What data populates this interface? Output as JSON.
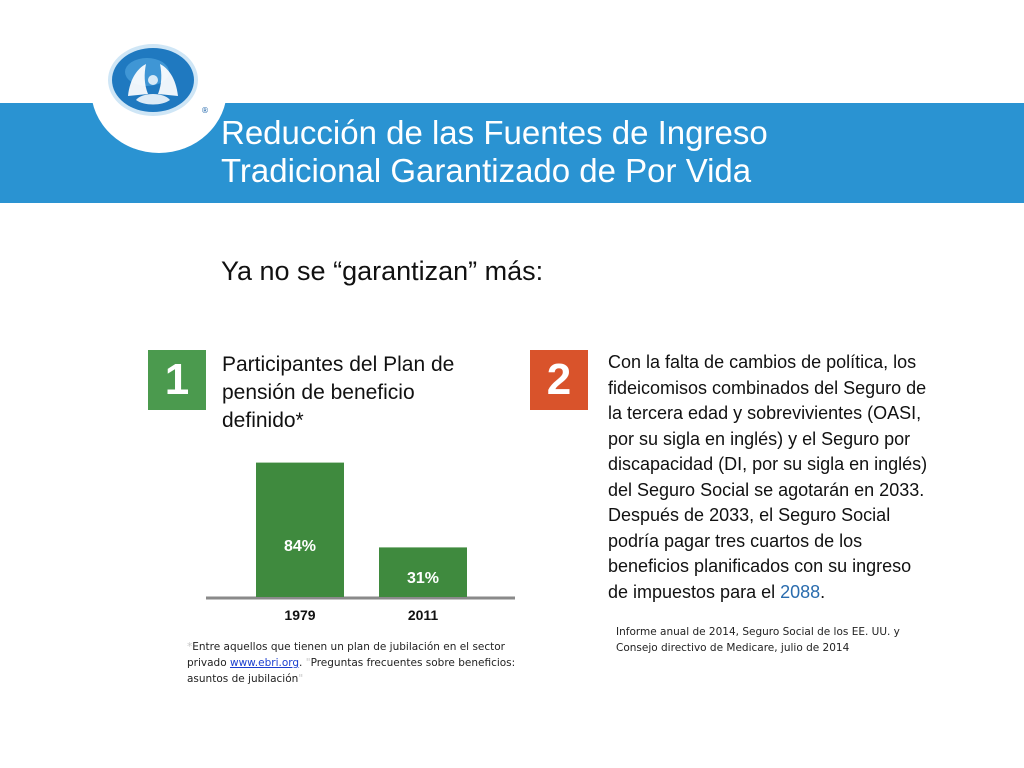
{
  "header": {
    "title_line1": "Reducción de las Fuentes de Ingreso",
    "title_line2": "Tradicional Garantizado de Por Vida",
    "logo_mark": "®",
    "brand_color": "#2a93d2"
  },
  "subtitle": "Ya no se “garantizan” más:",
  "item1": {
    "number": "1",
    "heading_line1": "Participantes del Plan de",
    "heading_line2": "pensión de beneficio",
    "heading_line3": "definido*",
    "badge_color": "#4b9a4e"
  },
  "chart_data": {
    "type": "bar",
    "title": "",
    "categories": [
      "1979",
      "2011"
    ],
    "values": [
      84,
      31
    ],
    "value_labels": [
      "84%",
      "31%"
    ],
    "bar_color": "#3f8a3e",
    "xlabel": "",
    "ylabel": "",
    "ylim": [
      0,
      100
    ]
  },
  "footnote1": {
    "star_open": "*",
    "line1": "Entre aquellos que tienen un plan de jubilación en el sector",
    "line2_prefix": "privado ",
    "link_text": "www.ebri.org",
    "line2_mid": ". ",
    "line2_suffix": "Preguntas frecuentes sobre beneficios:",
    "line3": "asuntos de jubilación",
    "star_close": "\""
  },
  "item2": {
    "number": "2",
    "badge_color": "#d9532b",
    "lines": [
      "Con la falta de cambios de política, los",
      "fideicomisos combinados del Seguro de",
      "la tercera edad y sobrevivientes (OASI,",
      "por su sigla en inglés) y el Seguro por",
      "discapacidad (DI, por su sigla en inglés)",
      "del Seguro Social se agotarán en 2033.",
      "Después de 2033, el Seguro Social",
      "podría pagar tres cuartos de los",
      "beneficios planificados con su ingreso"
    ],
    "last_line_prefix": "de impuestos para el ",
    "last_line_year": "2088",
    "last_line_suffix": "."
  },
  "source": {
    "line1": "Informe anual de 2014, Seguro Social de los EE. UU. y",
    "line2": "Consejo directivo de Medicare, julio de 2014"
  }
}
